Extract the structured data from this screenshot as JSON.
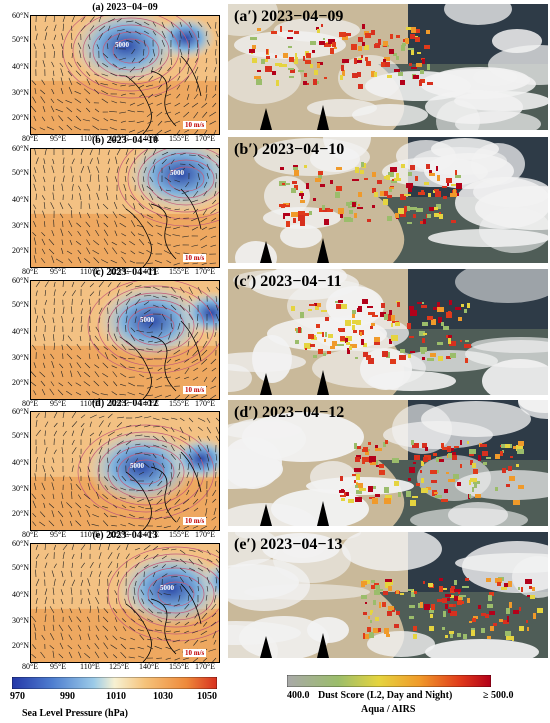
{
  "panels": [
    {
      "title": "(a)  2023−04−09",
      "sat_label": "(a′) 2023−04−09",
      "lat_ticks": [
        "60°N",
        "50°N",
        "40°N",
        "30°N",
        "20°N"
      ]
    },
    {
      "title": "(b)  2023−04−10",
      "sat_label": "(b′) 2023−04−10",
      "lat_ticks": [
        "60°N",
        "50°N",
        "40°N",
        "30°N",
        "20°N"
      ]
    },
    {
      "title": "(c)  2023−04−11",
      "sat_label": "(c′) 2023−04−11",
      "lat_ticks": [
        "60°N",
        "50°N",
        "40°N",
        "30°N",
        "20°N"
      ]
    },
    {
      "title": "(d)  2023−04−12",
      "sat_label": "(d′) 2023−04−12",
      "lat_ticks": [
        "60°N",
        "50°N",
        "40°N",
        "30°N",
        "20°N"
      ]
    },
    {
      "title": "(e)  2023−04−13",
      "sat_label": "(e′) 2023−04−13",
      "lat_ticks": [
        "60°N",
        "50°N",
        "40°N",
        "30°N",
        "20°N"
      ]
    }
  ],
  "lon_ticks": [
    "80°E",
    "95°E",
    "110°E",
    "125°E",
    "140°E",
    "155°E",
    "170°E"
  ],
  "wind_scale": "10 m/s",
  "contour_label": "5000",
  "slp_colorbar": {
    "ticks": [
      "970",
      "990",
      "1010",
      "1030",
      "1050"
    ],
    "title": "Sea Level Pressure (hPa)",
    "colors": [
      "#2437a8",
      "#4f7fd0",
      "#9ccbe8",
      "#f7f1d2",
      "#f5c27a",
      "#ee8a3b",
      "#d7301f"
    ]
  },
  "dust_colorbar": {
    "min": "400.0",
    "max": "≥ 500.0",
    "title": "Dust Score (L2, Day and Night)",
    "subtitle": "Aqua / AIRS",
    "colors": [
      "#a9a9a9",
      "#9bbd6b",
      "#e5d43f",
      "#f09a2a",
      "#e03a1b",
      "#b3001a"
    ]
  }
}
